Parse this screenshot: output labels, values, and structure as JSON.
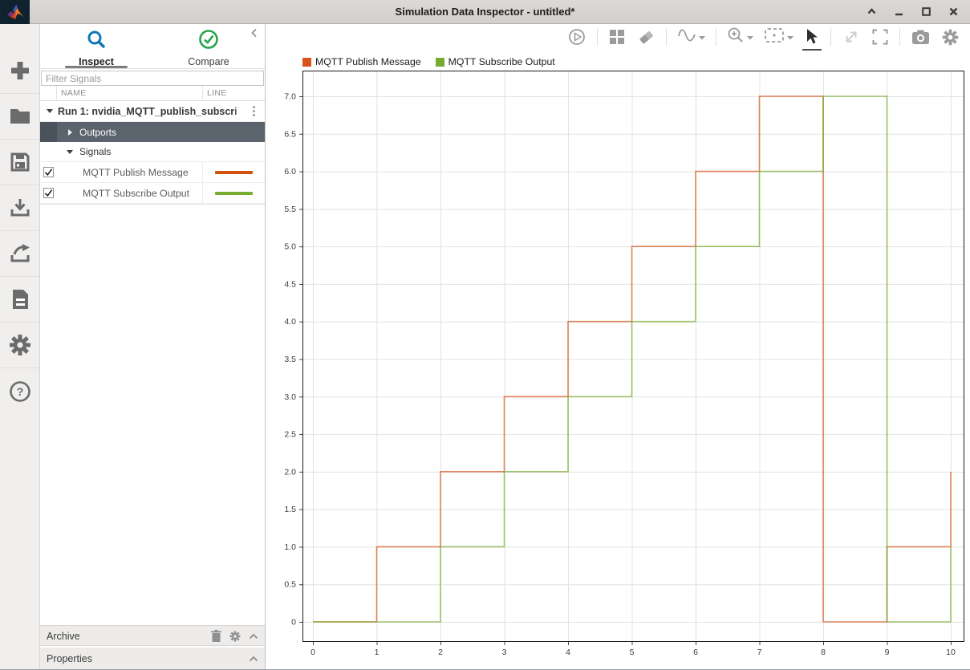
{
  "window": {
    "title": "Simulation Data Inspector - untitled*",
    "logo": "matlab-logo",
    "controls": [
      "shade",
      "minimize",
      "maximize",
      "close"
    ]
  },
  "left_toolbar": {
    "icons": [
      "add-icon",
      "open-folder-icon",
      "save-icon",
      "import-icon",
      "export-icon",
      "report-icon",
      "preferences-gear-icon",
      "help-icon"
    ]
  },
  "sidebar": {
    "tabs": [
      {
        "label": "Inspect",
        "icon": "magnifier-icon",
        "active": true
      },
      {
        "label": "Compare",
        "icon": "check-circle-icon",
        "active": false
      }
    ],
    "collapse_icon": "chevron-left-icon",
    "filter": {
      "placeholder": "Filter Signals"
    },
    "columns": {
      "name": "NAME",
      "line": "LINE"
    },
    "run": {
      "label": "Run 1: nvidia_MQTT_publish_subscri",
      "menu_icon": "kebab-menu-icon"
    },
    "groups": [
      {
        "label": "Outports",
        "state": "collapsed",
        "selected": true
      },
      {
        "label": "Signals",
        "state": "expanded",
        "selected": false
      }
    ],
    "signals": [
      {
        "name": "MQTT Publish Message",
        "checked": true,
        "color": "#d2500e"
      },
      {
        "name": "MQTT Subscribe Output",
        "checked": true,
        "color": "#77ac30"
      }
    ],
    "archive": {
      "label": "Archive",
      "icons": [
        "trash-icon",
        "gear-icon",
        "chevron-up-icon"
      ]
    },
    "properties": {
      "label": "Properties",
      "icons": [
        "chevron-up-icon"
      ]
    }
  },
  "chart_toolbar": {
    "icons": [
      "replay-icon",
      "layout-grid-icon",
      "eraser-icon",
      "signal-wave-icon",
      "zoom-in-icon",
      "fit-to-view-icon",
      "cursor-arrow-icon",
      "expand-diagonal-icon",
      "fullscreen-icon",
      "camera-icon",
      "settings-gear-icon"
    ],
    "active_tool": "cursor-arrow-icon",
    "disabled": [
      "expand-diagonal-icon"
    ]
  },
  "chart_data": {
    "type": "line",
    "mode": "stairs",
    "title": "",
    "xlabel": "",
    "ylabel": "",
    "grid": true,
    "legend_position": "top-left",
    "x_ticks": [
      0,
      1,
      2,
      3,
      4,
      5,
      6,
      7,
      8,
      9,
      10
    ],
    "y_ticks": [
      0,
      0.5,
      1.0,
      1.5,
      2.0,
      2.5,
      3.0,
      3.5,
      4.0,
      4.5,
      5.0,
      5.5,
      6.0,
      6.5,
      7.0
    ],
    "xlim": [
      -0.17,
      10.22
    ],
    "ylim": [
      -0.95,
      7.35
    ],
    "x": [
      0,
      1,
      2,
      3,
      4,
      5,
      6,
      7,
      8,
      9,
      10
    ],
    "series": [
      {
        "name": "MQTT Publish Message",
        "color": "#d95319",
        "values": [
          0,
          1,
          2,
          3,
          4,
          5,
          6,
          7,
          0,
          1,
          2
        ]
      },
      {
        "name": "MQTT Subscribe Output",
        "color": "#77ac30",
        "values": [
          0,
          0,
          1,
          2,
          3,
          4,
          5,
          6,
          7,
          0,
          1
        ]
      }
    ]
  }
}
